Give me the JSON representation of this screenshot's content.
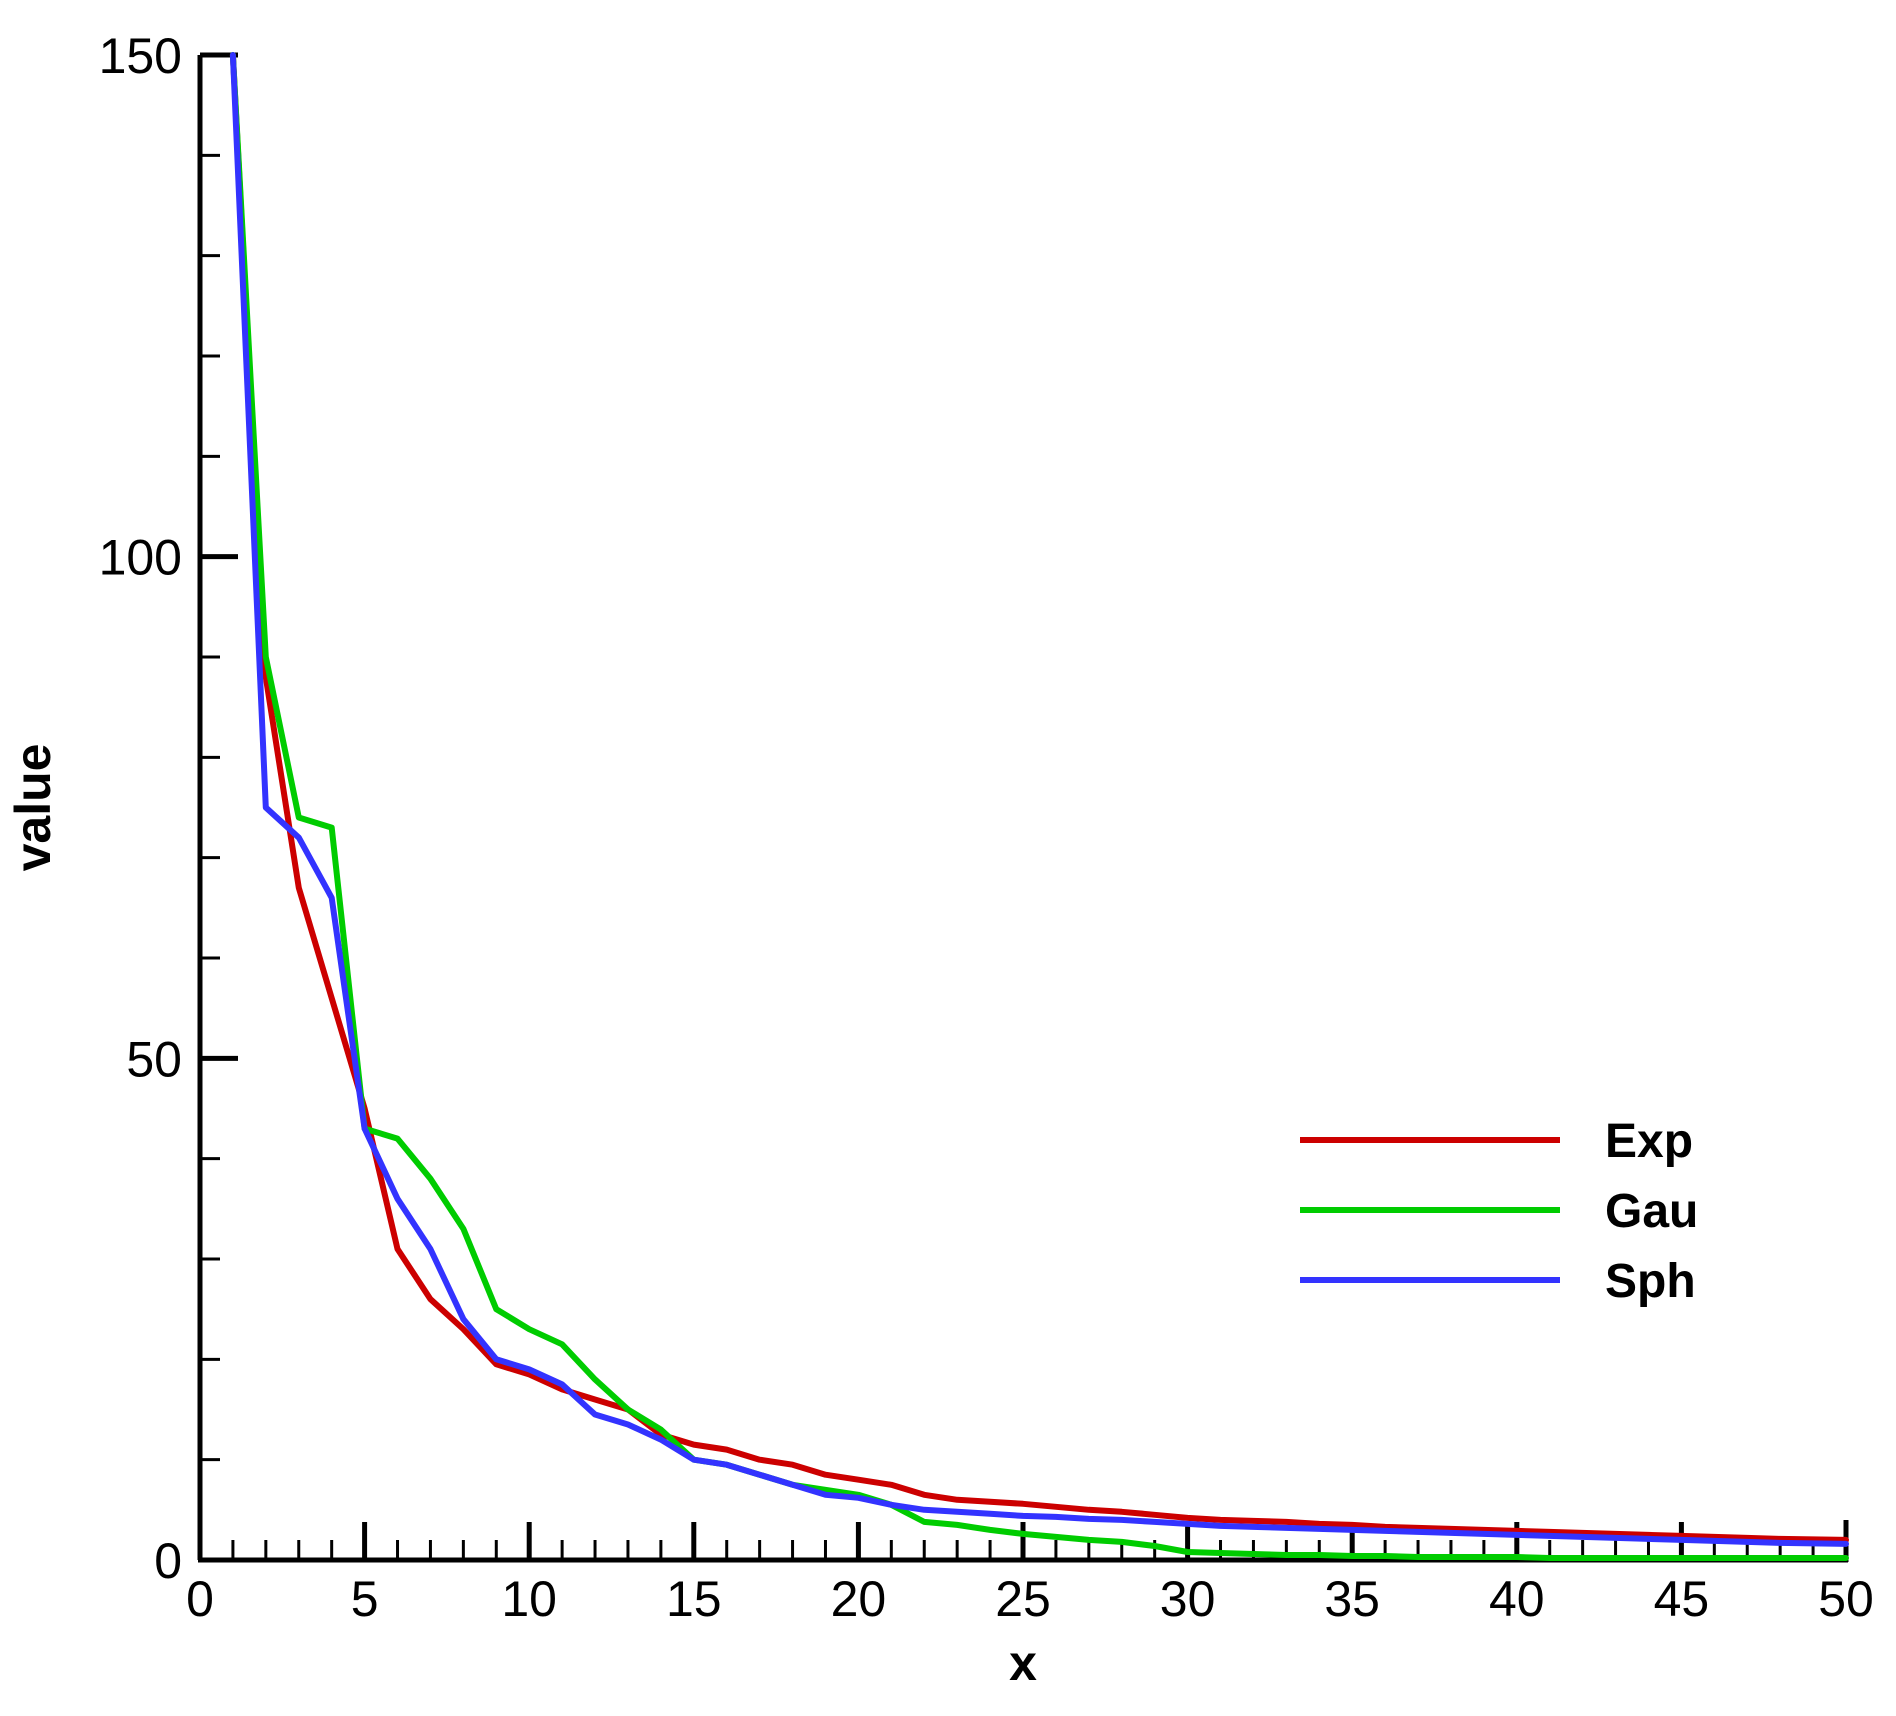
{
  "chart_data": {
    "type": "line",
    "title": "",
    "xlabel": "x",
    "ylabel": "value",
    "xlim": [
      0,
      50
    ],
    "ylim": [
      0,
      150
    ],
    "x_ticks": [
      0,
      5,
      10,
      15,
      20,
      25,
      30,
      35,
      40,
      45,
      50
    ],
    "x_minor_step": 1,
    "y_ticks": [
      0,
      50,
      100,
      150
    ],
    "y_minor_step": 10,
    "grid": false,
    "legend_position": "right",
    "series": [
      {
        "name": "Exp",
        "color": "#cc0000",
        "x": [
          1,
          2,
          3,
          4,
          5,
          6,
          7,
          8,
          9,
          10,
          11,
          12,
          13,
          14,
          15,
          16,
          17,
          18,
          19,
          20,
          21,
          22,
          23,
          24,
          25,
          26,
          27,
          28,
          29,
          30,
          31,
          32,
          33,
          34,
          35,
          36,
          37,
          38,
          39,
          40,
          41,
          42,
          43,
          44,
          45,
          46,
          47,
          48,
          49,
          50
        ],
        "values": [
          150,
          88,
          67,
          56,
          45,
          31,
          26,
          23,
          19.5,
          18.5,
          17,
          16,
          15,
          12.5,
          11.5,
          11,
          10,
          9.5,
          8.5,
          8,
          7.5,
          6.5,
          6,
          5.8,
          5.6,
          5.3,
          5,
          4.8,
          4.5,
          4.2,
          4,
          3.9,
          3.8,
          3.6,
          3.5,
          3.3,
          3.2,
          3.1,
          3,
          2.9,
          2.8,
          2.7,
          2.6,
          2.5,
          2.4,
          2.3,
          2.2,
          2.1,
          2.05,
          2
        ]
      },
      {
        "name": "Gau",
        "color": "#00cc00",
        "x": [
          1,
          2,
          3,
          4,
          5,
          6,
          7,
          8,
          9,
          10,
          11,
          12,
          13,
          14,
          15,
          16,
          17,
          18,
          19,
          20,
          21,
          22,
          23,
          24,
          25,
          26,
          27,
          28,
          29,
          30,
          31,
          32,
          33,
          34,
          35,
          36,
          37,
          38,
          39,
          40,
          41,
          42,
          43,
          44,
          45,
          46,
          47,
          48,
          49,
          50
        ],
        "values": [
          150,
          90,
          74,
          73,
          43,
          42,
          38,
          33,
          25,
          23,
          21.5,
          18,
          15,
          13,
          10,
          9.5,
          8.5,
          7.5,
          7,
          6.5,
          5.5,
          3.8,
          3.5,
          3,
          2.6,
          2.3,
          2,
          1.8,
          1.4,
          0.8,
          0.7,
          0.6,
          0.5,
          0.5,
          0.4,
          0.4,
          0.3,
          0.3,
          0.3,
          0.3,
          0.2,
          0.2,
          0.2,
          0.2,
          0.2,
          0.2,
          0.2,
          0.2,
          0.2,
          0.2
        ]
      },
      {
        "name": "Sph",
        "color": "#3333ff",
        "x": [
          1,
          2,
          3,
          4,
          5,
          6,
          7,
          8,
          9,
          10,
          11,
          12,
          13,
          14,
          15,
          16,
          17,
          18,
          19,
          20,
          21,
          22,
          23,
          24,
          25,
          26,
          27,
          28,
          29,
          30,
          31,
          32,
          33,
          34,
          35,
          36,
          37,
          38,
          39,
          40,
          41,
          42,
          43,
          44,
          45,
          46,
          47,
          48,
          49,
          50
        ],
        "values": [
          150,
          75,
          72,
          66,
          43,
          36,
          31,
          24,
          20,
          19,
          17.5,
          14.5,
          13.5,
          12,
          10,
          9.5,
          8.5,
          7.5,
          6.5,
          6.2,
          5.5,
          5,
          4.8,
          4.6,
          4.4,
          4.3,
          4.1,
          4,
          3.8,
          3.6,
          3.4,
          3.3,
          3.2,
          3.1,
          3,
          2.9,
          2.8,
          2.7,
          2.6,
          2.5,
          2.4,
          2.3,
          2.2,
          2.1,
          2,
          1.9,
          1.8,
          1.7,
          1.65,
          1.6
        ]
      }
    ]
  }
}
